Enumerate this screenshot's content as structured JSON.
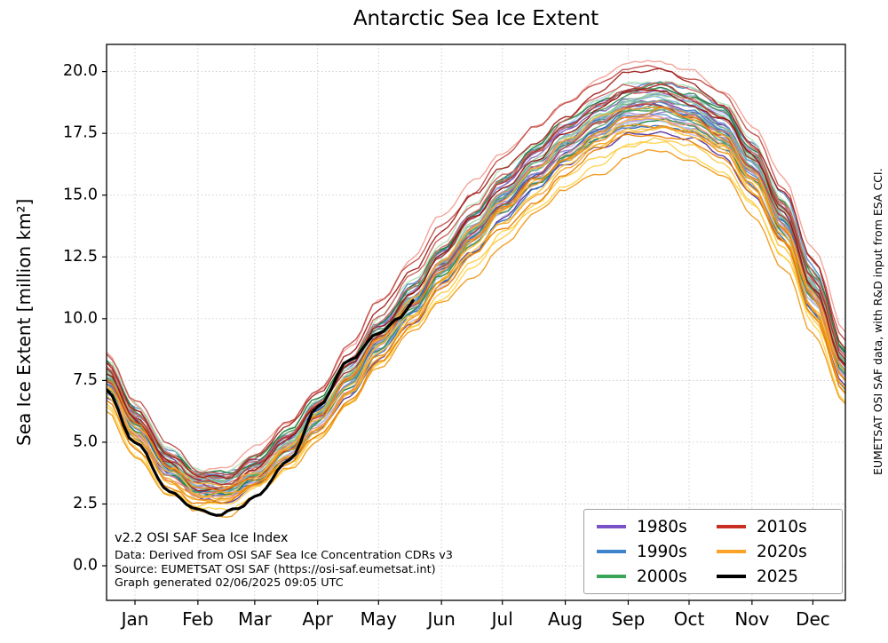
{
  "page": {
    "title": "Antarctic Sea Ice Extent"
  },
  "axes": {
    "ylabel": "Sea Ice Extent [million km²]"
  },
  "legend": {
    "items": [
      {
        "label": "1980s",
        "color": "#7a52c8"
      },
      {
        "label": "1990s",
        "color": "#3d82cb"
      },
      {
        "label": "2000s",
        "color": "#3aa458"
      },
      {
        "label": "2010s",
        "color": "#c92e22"
      },
      {
        "label": "2020s",
        "color": "#fba227"
      },
      {
        "label": "2025",
        "color": "#000000"
      }
    ]
  },
  "annotations": {
    "line1": "v2.2 OSI SAF Sea Ice Index",
    "line2": "Data: Derived from OSI SAF Sea Ice Concentration CDRs v3",
    "line3": "Source: EUMETSAT OSI SAF (https://osi-saf.eumetsat.int)",
    "line4": "Graph generated 02/06/2025 09:05 UTC"
  },
  "credit": "EUMETSAT OSI SAF data, with R&D input from ESA CCI.",
  "chart_data": {
    "type": "line",
    "title": "Antarctic Sea Ice Extent",
    "xlabel": "",
    "ylabel": "Sea Ice Extent [million km²]",
    "ylim": [
      -1.4,
      21.1
    ],
    "yticks": [
      0,
      2.5,
      5,
      7.5,
      10,
      12.5,
      15,
      17.5,
      20
    ],
    "month_labels": [
      "Jan",
      "Feb",
      "Mar",
      "Apr",
      "May",
      "Jun",
      "Jul",
      "Aug",
      "Sep",
      "Oct",
      "Nov",
      "Dec"
    ],
    "month_tick_days": [
      15,
      46,
      74,
      105,
      135,
      166,
      196,
      227,
      258,
      288,
      319,
      349
    ],
    "grid": true,
    "legend_position": "lower right",
    "sample_days": [
      1,
      15,
      32,
      46,
      60,
      74,
      91,
      105,
      121,
      135,
      152,
      166,
      182,
      196,
      213,
      227,
      244,
      258,
      274,
      288,
      305,
      319,
      335,
      349,
      365
    ],
    "series": [
      {
        "name": "1980s",
        "lines": 10,
        "spread": 0.85,
        "wiggle": 0.16,
        "width": 1.4,
        "color_range": [
          "#cbb7ea",
          "#5636a0"
        ],
        "values": [
          7.6,
          5.8,
          4.1,
          3.3,
          3.2,
          3.8,
          4.9,
          6.1,
          7.5,
          9.0,
          10.5,
          12.0,
          13.4,
          14.7,
          15.9,
          16.9,
          17.8,
          18.4,
          18.5,
          18.2,
          17.5,
          16.0,
          13.8,
          11.0,
          7.9
        ]
      },
      {
        "name": "1990s",
        "lines": 10,
        "spread": 0.85,
        "wiggle": 0.16,
        "width": 1.4,
        "color_range": [
          "#b5d4f2",
          "#1f63b4"
        ],
        "values": [
          7.5,
          5.7,
          4.0,
          3.2,
          3.2,
          3.8,
          4.9,
          6.2,
          7.6,
          9.1,
          10.7,
          12.2,
          13.6,
          14.9,
          16.1,
          17.1,
          18.0,
          18.6,
          18.7,
          18.4,
          17.7,
          16.2,
          14.0,
          11.2,
          8.0
        ]
      },
      {
        "name": "2000s",
        "lines": 10,
        "spread": 0.8,
        "wiggle": 0.16,
        "width": 1.4,
        "color_range": [
          "#b2e0b6",
          "#1e7e3e"
        ],
        "values": [
          7.8,
          6.0,
          4.2,
          3.4,
          3.3,
          3.9,
          5.0,
          6.3,
          7.8,
          9.3,
          10.9,
          12.4,
          13.8,
          15.1,
          16.3,
          17.3,
          18.2,
          18.8,
          18.9,
          18.6,
          17.9,
          16.4,
          14.1,
          11.4,
          8.2
        ]
      },
      {
        "name": "2010s",
        "lines": 10,
        "spread": 1.15,
        "wiggle": 0.17,
        "width": 1.4,
        "color_range": [
          "#f3a096",
          "#971210"
        ],
        "values": [
          8.0,
          6.1,
          4.3,
          3.5,
          3.4,
          4.1,
          5.3,
          6.6,
          8.2,
          9.8,
          11.4,
          12.9,
          14.3,
          15.6,
          16.8,
          17.8,
          18.7,
          19.3,
          19.4,
          19.0,
          18.2,
          16.7,
          14.5,
          11.7,
          8.5
        ]
      },
      {
        "name": "2020s",
        "lines": 10,
        "spread": 0.95,
        "wiggle": 0.17,
        "width": 1.4,
        "color_range": [
          "#ffd550",
          "#e87e04"
        ],
        "values": [
          6.9,
          5.1,
          3.4,
          2.7,
          2.7,
          3.3,
          4.4,
          5.6,
          7.0,
          8.5,
          10.0,
          11.4,
          12.7,
          13.9,
          15.1,
          16.1,
          17.0,
          17.6,
          17.7,
          17.4,
          16.7,
          15.2,
          13.0,
          10.2,
          7.1
        ]
      },
      {
        "name": "2025",
        "lines": 1,
        "spread": 0,
        "wiggle": 0.09,
        "width": 3.2,
        "alpha": 1,
        "color_range": [
          "#000000",
          "#000000"
        ],
        "days": [
          1,
          15,
          32,
          46,
          55,
          66,
          74,
          91,
          105,
          121,
          135,
          146,
          152
        ],
        "values": [
          7.1,
          4.9,
          3.0,
          2.3,
          2.1,
          2.4,
          2.9,
          4.3,
          6.4,
          8.3,
          9.4,
          10.1,
          10.8
        ]
      }
    ]
  }
}
